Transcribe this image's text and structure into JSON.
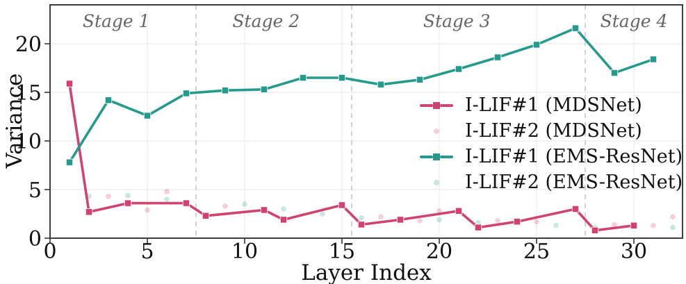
{
  "chart_data": {
    "type": "line",
    "title": "",
    "xlabel": "Layer Index",
    "ylabel": "Variance",
    "xlim": [
      0,
      32.5
    ],
    "ylim": [
      0,
      24
    ],
    "xticks": [
      0,
      5,
      10,
      15,
      20,
      25,
      30
    ],
    "yticks": [
      0,
      5,
      10,
      15,
      20
    ],
    "grid": true,
    "legend_position": "center-right",
    "stage_dividers": [
      7.5,
      15.5,
      27.5
    ],
    "stages": [
      {
        "label": "Stage 1",
        "center": 3.4
      },
      {
        "label": "Stage 2",
        "center": 11.1
      },
      {
        "label": "Stage 3",
        "center": 20.9
      },
      {
        "label": "Stage 4",
        "center": 30.0
      }
    ],
    "series": [
      {
        "name": "I-LIF#1 (MDSNet)",
        "style": "line",
        "color": "#d1436e",
        "points": [
          [
            1,
            15.9
          ],
          [
            2,
            2.7
          ],
          [
            4,
            3.6
          ],
          [
            7,
            3.6
          ],
          [
            8,
            2.3
          ],
          [
            11,
            2.9
          ],
          [
            12,
            1.9
          ],
          [
            15,
            3.4
          ],
          [
            16,
            1.4
          ],
          [
            18,
            1.9
          ],
          [
            21,
            2.8
          ],
          [
            22,
            1.1
          ],
          [
            24,
            1.7
          ],
          [
            27,
            3.0
          ],
          [
            28,
            0.8
          ],
          [
            30,
            1.3
          ]
        ]
      },
      {
        "name": "I-LIF#2 (MDSNet)",
        "style": "scatter",
        "color": "rgba(209,67,110,0.25)",
        "points": [
          [
            3,
            4.3
          ],
          [
            5,
            2.9
          ],
          [
            6,
            4.8
          ],
          [
            9,
            3.3
          ],
          [
            17,
            2.2
          ],
          [
            19,
            1.8
          ],
          [
            20,
            2.8
          ],
          [
            23,
            1.8
          ],
          [
            25,
            1.7
          ],
          [
            29,
            1.4
          ],
          [
            31,
            1.3
          ],
          [
            32,
            2.2
          ]
        ]
      },
      {
        "name": "I-LIF#1 (EMS-ResNet)",
        "style": "line",
        "color": "#259a8c",
        "points": [
          [
            1,
            7.8
          ],
          [
            3,
            14.2
          ],
          [
            5,
            12.6
          ],
          [
            7,
            14.9
          ],
          [
            9,
            15.2
          ],
          [
            11,
            15.3
          ],
          [
            13,
            16.5
          ],
          [
            15,
            16.5
          ],
          [
            17,
            15.8
          ],
          [
            19,
            16.3
          ],
          [
            21,
            17.4
          ],
          [
            23,
            18.6
          ],
          [
            25,
            19.9
          ],
          [
            27,
            21.6
          ],
          [
            29,
            17.0
          ],
          [
            31,
            18.4
          ]
        ]
      },
      {
        "name": "I-LIF#2 (EMS-ResNet)",
        "style": "scatter",
        "color": "rgba(37,154,140,0.25)",
        "points": [
          [
            2,
            4.3
          ],
          [
            4,
            4.4
          ],
          [
            6,
            4.0
          ],
          [
            10,
            3.5
          ],
          [
            12,
            3.0
          ],
          [
            14,
            2.5
          ],
          [
            16,
            2.1
          ],
          [
            20,
            1.9
          ],
          [
            22,
            1.6
          ],
          [
            26,
            1.3
          ],
          [
            28,
            1.1
          ],
          [
            32,
            1.1
          ]
        ]
      }
    ],
    "colors": {
      "grid": "#e9e9e9",
      "divider": "#c8c8c8",
      "spine": "#3d3d3d",
      "tick": "#333333",
      "text": "#111111",
      "stage_text": "#666666"
    }
  }
}
